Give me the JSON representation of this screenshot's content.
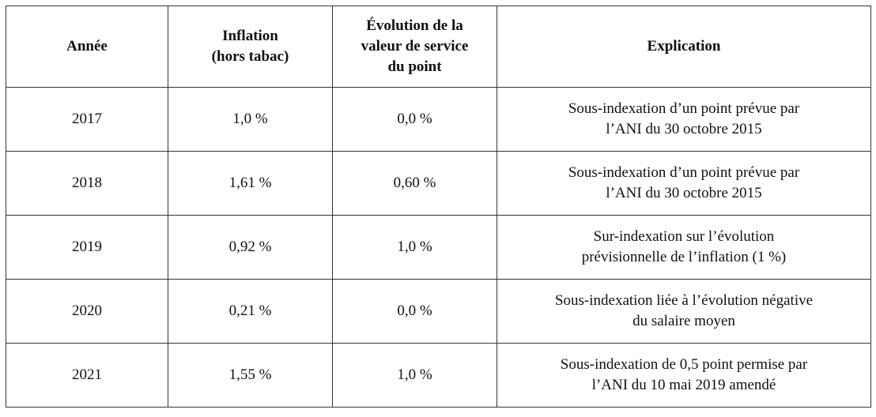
{
  "table": {
    "header": [
      [
        "Année"
      ],
      [
        "Inflation",
        "(hors tabac)"
      ],
      [
        "Évolution de la",
        "valeur de service",
        "du point"
      ],
      [
        "Explication"
      ]
    ],
    "rows": [
      [
        [
          "2017"
        ],
        [
          "1,0 %"
        ],
        [
          "0,0 %"
        ],
        [
          "Sous-indexation d’un point prévue par",
          "l’ANI du 30 octobre 2015"
        ]
      ],
      [
        [
          "2018"
        ],
        [
          "1,61 %"
        ],
        [
          "0,60 %"
        ],
        [
          "Sous-indexation d’un point prévue par",
          "l’ANI du 30 octobre 2015"
        ]
      ],
      [
        [
          "2019"
        ],
        [
          "0,92 %"
        ],
        [
          "1,0 %"
        ],
        [
          "Sur-indexation sur l’évolution",
          "prévisionnelle de l’inflation (1 %)"
        ]
      ],
      [
        [
          "2020"
        ],
        [
          "0,21 %"
        ],
        [
          "0,0 %"
        ],
        [
          "Sous-indexation liée à l’évolution négative",
          "du salaire moyen"
        ]
      ],
      [
        [
          "2021"
        ],
        [
          "1,55 %"
        ],
        [
          "1,0 %"
        ],
        [
          "Sous-indexation de 0,5 point permise par",
          "l’ANI du 10 mai 2019 amendé"
        ]
      ]
    ]
  }
}
